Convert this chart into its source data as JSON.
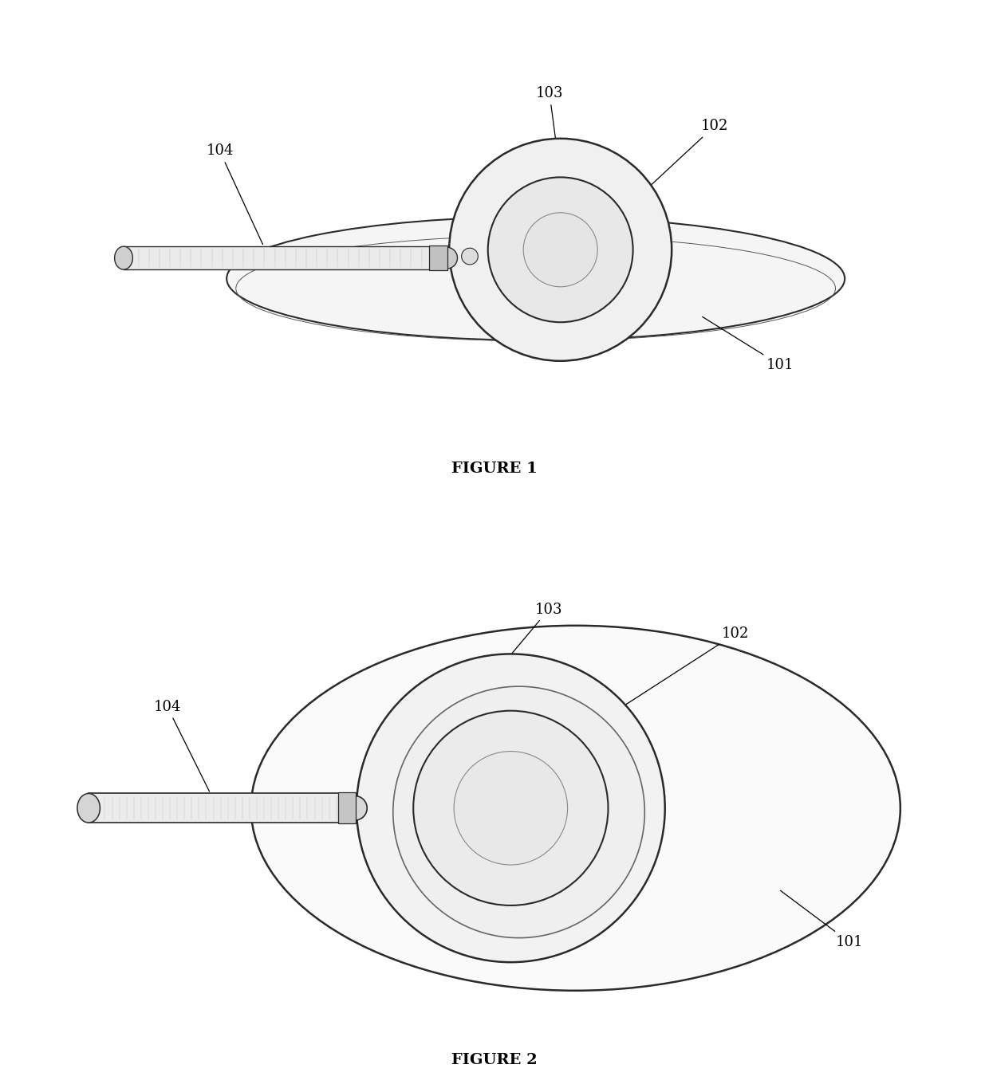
{
  "bg_color": "#ffffff",
  "line_color": "#2a2a2a",
  "fig1_label": "FIGURE 1",
  "fig2_label": "FIGURE 2",
  "label_101": "101",
  "label_102": "102",
  "label_103": "103",
  "label_104": "104",
  "annotation_color": "#000000"
}
